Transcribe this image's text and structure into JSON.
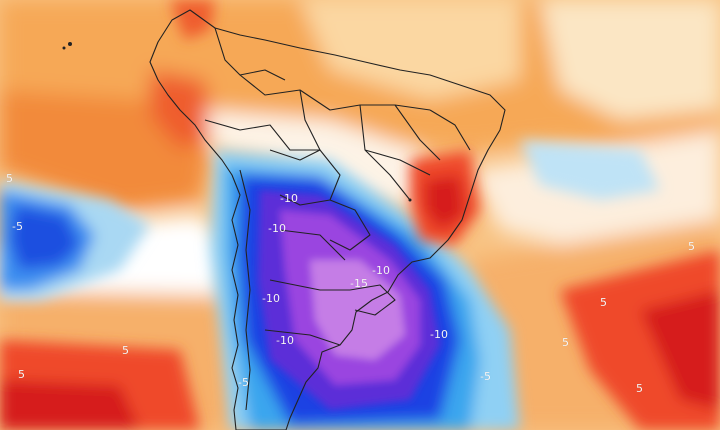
{
  "map": {
    "region": "South America",
    "variable": "temperature anomaly (shaded, contoured)",
    "palette": {
      "deep_red": "#d61e1a",
      "red": "#ef4a2a",
      "orange": "#f59a3e",
      "light_orange": "#f8bd6a",
      "pale": "#fbe2b4",
      "white": "#ffffff",
      "light_blue": "#bfe3f6",
      "blue": "#3aa2ee",
      "deep_blue": "#1a3fe0",
      "indigo": "#4b2bd6",
      "violet": "#8a3be0",
      "lilac": "#c279e6",
      "land_border": "#222222"
    },
    "contour_labels": [
      {
        "id": "lbl-1",
        "text": "-10"
      },
      {
        "id": "lbl-2",
        "text": "-10"
      },
      {
        "id": "lbl-3",
        "text": "-10"
      },
      {
        "id": "lbl-4",
        "text": "-10"
      },
      {
        "id": "lbl-5",
        "text": "-10"
      },
      {
        "id": "lbl-6",
        "text": "-15"
      },
      {
        "id": "lbl-7",
        "text": "-10"
      },
      {
        "id": "lbl-8",
        "text": "-5"
      },
      {
        "id": "lbl-9",
        "text": "-5"
      },
      {
        "id": "lbl-10",
        "text": "5"
      },
      {
        "id": "lbl-11",
        "text": "5"
      },
      {
        "id": "lbl-12",
        "text": "5"
      },
      {
        "id": "lbl-13",
        "text": "5"
      },
      {
        "id": "lbl-14",
        "text": "5"
      },
      {
        "id": "lbl-15",
        "text": "5"
      },
      {
        "id": "lbl-16",
        "text": "-5"
      },
      {
        "id": "lbl-17",
        "text": "5"
      }
    ]
  }
}
